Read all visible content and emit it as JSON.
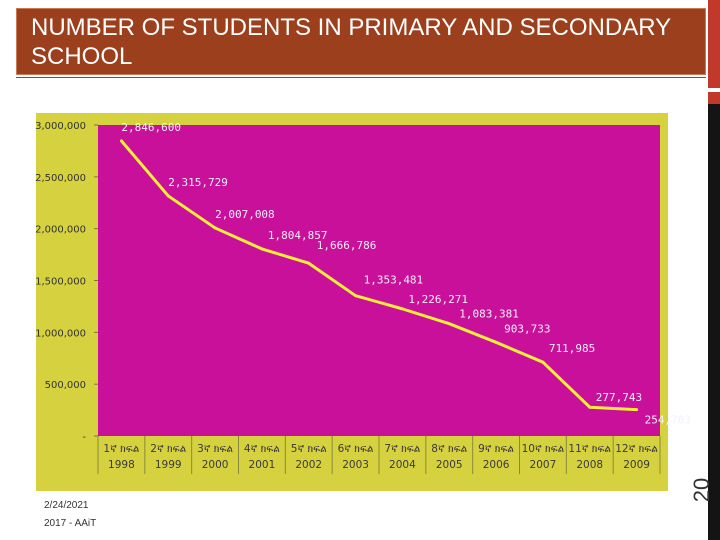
{
  "slide": {
    "title": "NUMBER OF STUDENTS IN PRIMARY AND SECONDARY SCHOOL",
    "date": "2/24/2021",
    "org": "2017 - AAiT",
    "slide_number": "20"
  },
  "colors": {
    "title_bg": "#9b3f1c",
    "chart_bg": "#d6d23f",
    "plot_bg": "#c8109a",
    "line": "#f2ee3a",
    "label": "#f4f0f8",
    "accent_red": "#c0392b"
  },
  "chart_data": {
    "type": "line",
    "title": "",
    "xlabel": "",
    "ylabel": "",
    "ylim": [
      0,
      3000000
    ],
    "yticks": [
      0,
      500000,
      1000000,
      1500000,
      2000000,
      2500000,
      3000000
    ],
    "ytick_labels": [
      "-",
      "500,000",
      "1,000,000",
      "1,500,000",
      "2,000,000",
      "2,500,000",
      "3,000,000"
    ],
    "categories": [
      "1ኛ ክፍል",
      "2ኛ ክፍል",
      "3ኛ ክፍል",
      "4ኛ ክፍል",
      "5ኛ ክፍል",
      "6ኛ ክፍል",
      "7ኛ ክፍል",
      "8ኛ ክፍል",
      "9ኛ ክፍል",
      "10ኛ ክፍል",
      "11ኛ ክፍል",
      "12ኛ ክፍል"
    ],
    "years": [
      "1998",
      "1999",
      "2000",
      "2001",
      "2002",
      "2003",
      "2004",
      "2005",
      "2006",
      "2007",
      "2008",
      "2009"
    ],
    "values": [
      2846600,
      2315729,
      2007008,
      1804857,
      1666786,
      1353481,
      1226271,
      1083381,
      903733,
      711985,
      277743,
      254703
    ],
    "value_labels": [
      "2,846,600",
      "2,315,729",
      "2,007,008",
      "1,804,857",
      "1,666,786",
      "1,353,481",
      "1,226,271",
      "1,083,381",
      "903,733",
      "711,985",
      "277,743",
      "254,703"
    ]
  }
}
